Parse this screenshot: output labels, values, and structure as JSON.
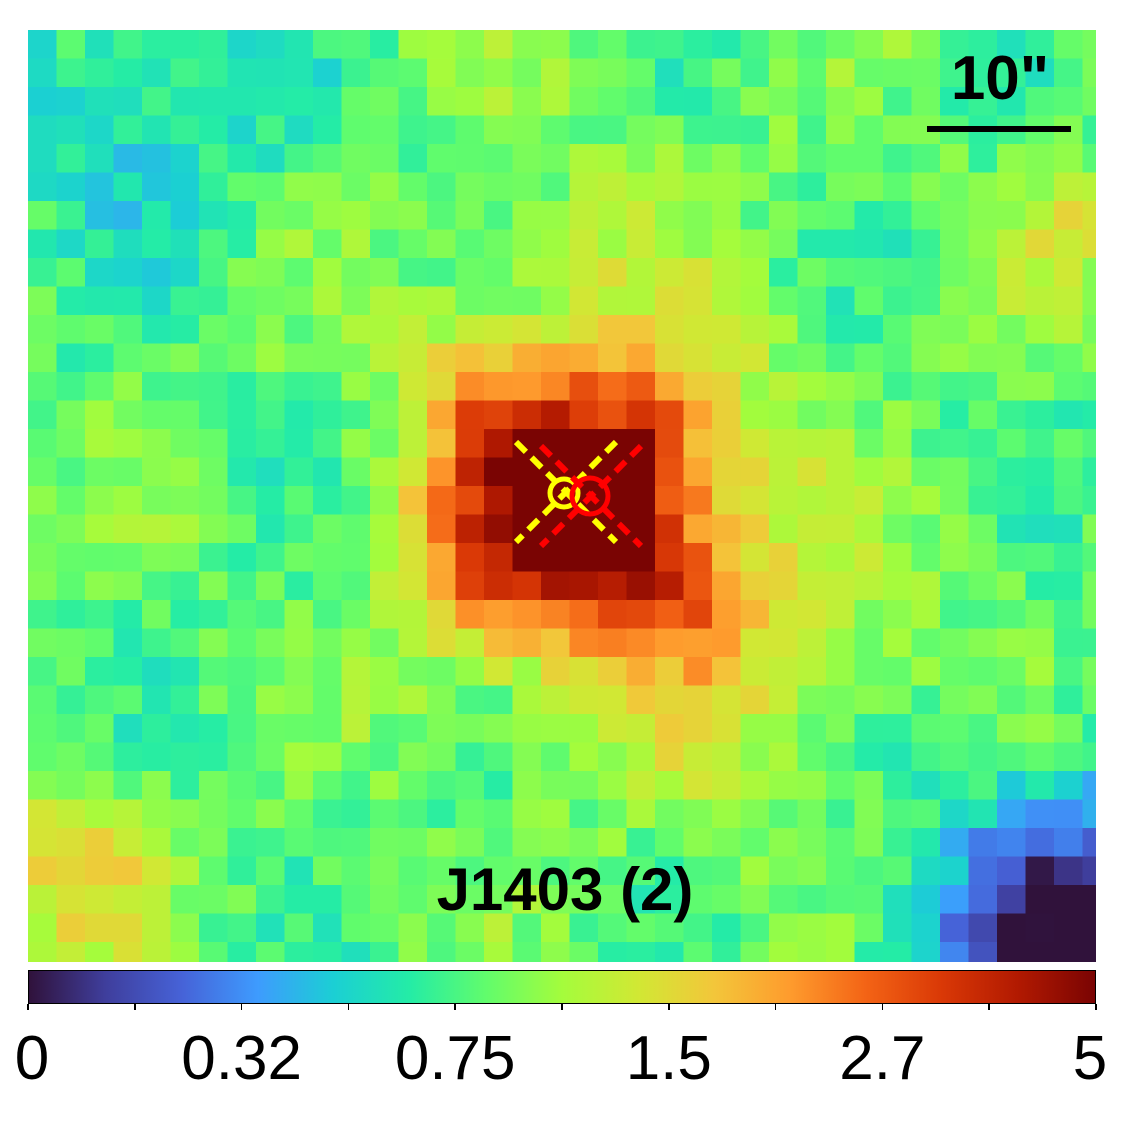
{
  "field_label": "J1403 (2)",
  "scale_bar": {
    "label": "10\""
  },
  "colorbar": {
    "tick_labels": [
      "0",
      "0.32",
      "0.75",
      "1.5",
      "2.7",
      "5"
    ],
    "colormap": "turbo",
    "min": 0,
    "max": 5,
    "stops": [
      "#30123b",
      "#3f3e9c",
      "#4662d7",
      "#3e9bfe",
      "#1bcfd4",
      "#24eca6",
      "#61fc6c",
      "#a4fc3c",
      "#d1e834",
      "#f3c63a",
      "#fe9b2d",
      "#f36315",
      "#d93806",
      "#b11901",
      "#7a0403"
    ]
  },
  "markers": [
    {
      "color": "#ffff00",
      "style": "circle-with-dashed-x"
    },
    {
      "color": "#ff0000",
      "style": "circle-with-dashed-x"
    }
  ]
}
